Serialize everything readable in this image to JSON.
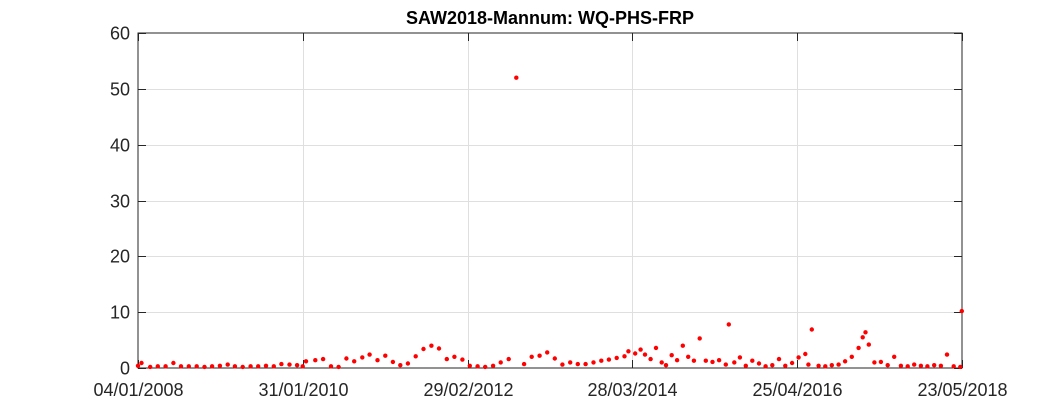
{
  "chart_data": {
    "type": "scatter",
    "title": "SAW2018-Mannum: WQ-PHS-FRP",
    "xlabel": "",
    "ylabel": "",
    "x_axis_kind": "date",
    "xlim": [
      "2008-01-04",
      "2018-05-23"
    ],
    "ylim": [
      0,
      60
    ],
    "x_tick_labels": [
      "04/01/2008",
      "31/01/2010",
      "29/02/2012",
      "28/03/2014",
      "25/04/2016",
      "23/05/2018"
    ],
    "y_tick_labels": [
      "0",
      "10",
      "20",
      "30",
      "40",
      "50",
      "60"
    ],
    "grid": true,
    "legend": "none",
    "marker_color": "#ff0000",
    "series": [
      {
        "points": [
          [
            "2008-01-04",
            0.4
          ],
          [
            "2008-01-20",
            0.9
          ],
          [
            "2008-02-29",
            0.2
          ],
          [
            "2008-04-04",
            0.3
          ],
          [
            "2008-05-10",
            0.3
          ],
          [
            "2008-06-15",
            0.9
          ],
          [
            "2008-07-20",
            0.3
          ],
          [
            "2008-08-25",
            0.3
          ],
          [
            "2008-09-30",
            0.3
          ],
          [
            "2008-11-05",
            0.2
          ],
          [
            "2008-12-10",
            0.3
          ],
          [
            "2009-01-15",
            0.4
          ],
          [
            "2009-02-20",
            0.6
          ],
          [
            "2009-03-25",
            0.3
          ],
          [
            "2009-04-30",
            0.2
          ],
          [
            "2009-06-05",
            0.3
          ],
          [
            "2009-07-10",
            0.3
          ],
          [
            "2009-08-15",
            0.4
          ],
          [
            "2009-09-20",
            0.3
          ],
          [
            "2009-10-25",
            0.7
          ],
          [
            "2009-12-01",
            0.6
          ],
          [
            "2010-01-05",
            0.5
          ],
          [
            "2010-01-31",
            0.3
          ],
          [
            "2010-02-15",
            1.2
          ],
          [
            "2010-03-30",
            1.4
          ],
          [
            "2010-05-05",
            1.6
          ],
          [
            "2010-06-10",
            0.3
          ],
          [
            "2010-07-15",
            0.2
          ],
          [
            "2010-08-20",
            1.7
          ],
          [
            "2010-09-25",
            1.2
          ],
          [
            "2010-11-01",
            1.9
          ],
          [
            "2010-12-05",
            2.4
          ],
          [
            "2011-01-10",
            1.4
          ],
          [
            "2011-02-15",
            2.2
          ],
          [
            "2011-03-22",
            1.1
          ],
          [
            "2011-04-25",
            0.5
          ],
          [
            "2011-05-30",
            0.8
          ],
          [
            "2011-07-05",
            2.1
          ],
          [
            "2011-08-10",
            3.4
          ],
          [
            "2011-09-15",
            4.0
          ],
          [
            "2011-10-20",
            3.5
          ],
          [
            "2011-11-25",
            1.6
          ],
          [
            "2011-12-30",
            2.0
          ],
          [
            "2012-02-05",
            1.5
          ],
          [
            "2012-03-10",
            0.4
          ],
          [
            "2012-04-15",
            0.3
          ],
          [
            "2012-05-20",
            0.2
          ],
          [
            "2012-06-25",
            0.4
          ],
          [
            "2012-07-30",
            1.0
          ],
          [
            "2012-09-05",
            1.6
          ],
          [
            "2012-10-10",
            52.0
          ],
          [
            "2012-11-15",
            0.7
          ],
          [
            "2012-12-20",
            2.0
          ],
          [
            "2013-01-25",
            2.2
          ],
          [
            "2013-03-01",
            2.8
          ],
          [
            "2013-04-05",
            1.7
          ],
          [
            "2013-05-10",
            0.6
          ],
          [
            "2013-06-15",
            1.0
          ],
          [
            "2013-07-20",
            0.7
          ],
          [
            "2013-08-25",
            0.7
          ],
          [
            "2013-09-30",
            1.0
          ],
          [
            "2013-11-05",
            1.3
          ],
          [
            "2013-12-10",
            1.5
          ],
          [
            "2014-01-15",
            1.8
          ],
          [
            "2014-02-20",
            2.1
          ],
          [
            "2014-03-10",
            3.0
          ],
          [
            "2014-04-10",
            2.6
          ],
          [
            "2014-05-05",
            3.3
          ],
          [
            "2014-05-25",
            2.4
          ],
          [
            "2014-06-20",
            1.6
          ],
          [
            "2014-07-15",
            3.6
          ],
          [
            "2014-08-10",
            1.0
          ],
          [
            "2014-08-30",
            0.5
          ],
          [
            "2014-09-25",
            2.3
          ],
          [
            "2014-10-20",
            1.4
          ],
          [
            "2014-11-15",
            4.0
          ],
          [
            "2014-12-10",
            2.0
          ],
          [
            "2015-01-05",
            1.3
          ],
          [
            "2015-02-01",
            5.3
          ],
          [
            "2015-03-01",
            1.3
          ],
          [
            "2015-04-01",
            1.1
          ],
          [
            "2015-05-01",
            1.4
          ],
          [
            "2015-06-01",
            0.6
          ],
          [
            "2015-06-15",
            7.8
          ],
          [
            "2015-07-10",
            1.0
          ],
          [
            "2015-08-05",
            1.9
          ],
          [
            "2015-09-01",
            0.4
          ],
          [
            "2015-10-01",
            1.3
          ],
          [
            "2015-11-01",
            0.8
          ],
          [
            "2015-12-01",
            0.3
          ],
          [
            "2016-01-01",
            0.5
          ],
          [
            "2016-02-01",
            1.6
          ],
          [
            "2016-03-01",
            0.4
          ],
          [
            "2016-04-01",
            0.9
          ],
          [
            "2016-05-01",
            1.9
          ],
          [
            "2016-06-01",
            2.5
          ],
          [
            "2016-06-15",
            0.6
          ],
          [
            "2016-07-01",
            6.9
          ],
          [
            "2016-08-01",
            0.4
          ],
          [
            "2016-09-01",
            0.3
          ],
          [
            "2016-10-01",
            0.5
          ],
          [
            "2016-11-01",
            0.6
          ],
          [
            "2016-12-01",
            1.2
          ],
          [
            "2017-01-01",
            2.0
          ],
          [
            "2017-02-01",
            3.6
          ],
          [
            "2017-02-20",
            5.5
          ],
          [
            "2017-03-05",
            6.4
          ],
          [
            "2017-03-20",
            4.2
          ],
          [
            "2017-04-15",
            1.0
          ],
          [
            "2017-05-15",
            1.1
          ],
          [
            "2017-06-15",
            0.5
          ],
          [
            "2017-07-15",
            2.0
          ],
          [
            "2017-08-15",
            0.4
          ],
          [
            "2017-09-15",
            0.3
          ],
          [
            "2017-10-15",
            0.6
          ],
          [
            "2017-11-15",
            0.4
          ],
          [
            "2017-12-15",
            0.3
          ],
          [
            "2018-01-15",
            0.5
          ],
          [
            "2018-02-15",
            0.4
          ],
          [
            "2018-03-15",
            2.4
          ],
          [
            "2018-04-15",
            0.3
          ],
          [
            "2018-05-15",
            0.2
          ],
          [
            "2018-05-22",
            10.2
          ]
        ]
      }
    ]
  }
}
